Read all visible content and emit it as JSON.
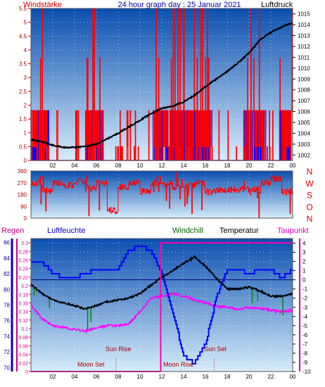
{
  "title": "24 hour graph day : 25 Januar 2021",
  "colors": {
    "wind_gust": "#ff0000",
    "wind_avg": "#0000ff",
    "pressure": "#000000",
    "direction": "#ff0000",
    "humidity": "#0000ff",
    "windchill": "#008800",
    "temperature": "#000000",
    "dewpoint": "#ff00ff",
    "rain": "#ff00aa",
    "sky_top": "#0a4fb0",
    "sky_bottom": "#d6ecfa"
  },
  "x_hours": [
    "02",
    "04",
    "06",
    "08",
    "10",
    "12",
    "14",
    "16",
    "18",
    "20",
    "22",
    "00"
  ],
  "panel1": {
    "left_label": "Windstärke",
    "right_label": "Luftdruck",
    "left_ticks": [
      "5.5",
      "5",
      "4.5",
      "4",
      "3.5",
      "3",
      "2.5",
      "2",
      "1.5",
      "1",
      "0.5",
      "0"
    ],
    "right_ticks": [
      "1015",
      "1014",
      "1013",
      "1012",
      "1011",
      "1010",
      "1009",
      "1008",
      "1007",
      "1006",
      "1005",
      "1004",
      "1003",
      "1002"
    ]
  },
  "panel2": {
    "left_ticks": [
      "360",
      "270",
      "180",
      "90",
      "0"
    ],
    "right_ticks": [
      "N",
      "W",
      "S",
      "O",
      "N"
    ]
  },
  "panel3": {
    "rain_label": "Regen",
    "humidity_label": "Luftfeuchte",
    "windchill_label": "Windchill",
    "temperature_label": "Temperatur",
    "dewpoint_label": "Taupunkt",
    "humidity_ticks": [
      "86",
      "84",
      "82",
      "80",
      "78",
      "76",
      "74",
      "72",
      "70"
    ],
    "rain_ticks": [
      "0.3",
      "0.28",
      "0.26",
      "0.24",
      "0.22",
      "0.2",
      "0.18",
      "0.16",
      "0.14",
      "0.12",
      "0.1",
      "0.08",
      "0.06",
      "0.04",
      "0.02",
      "0"
    ],
    "temp_ticks": [
      "4",
      "3",
      "2",
      "1",
      "0",
      "-1",
      "-2",
      "-3",
      "-4",
      "-5",
      "-6",
      "-7",
      "-8",
      "-9",
      "-10"
    ],
    "moon_set": "Moon Set",
    "sun_rise": "Sun Rise",
    "moon_rise": "Moon Rise",
    "sun_set": "Sun Set"
  },
  "chart_data": [
    {
      "type": "line",
      "title": "24 hour graph day : 25 Januar 2021",
      "ylabel": "Windstärke",
      "y2label": "Luftdruck",
      "ylim": [
        0,
        5.5
      ],
      "y2lim": [
        1001.5,
        1015.5
      ],
      "x": [
        0,
        1,
        2,
        3,
        4,
        5,
        6,
        7,
        8,
        9,
        10,
        11,
        12,
        13,
        14,
        15,
        16,
        17,
        18,
        19,
        20,
        21,
        22,
        23,
        24
      ],
      "series": [
        {
          "name": "Luftdruck",
          "values": [
            1003.4,
            1003.2,
            1002.9,
            1002.7,
            1002.7,
            1002.8,
            1003.0,
            1003.5,
            1004.0,
            1004.6,
            1005.2,
            1005.8,
            1006.3,
            1006.5,
            1006.9,
            1007.5,
            1008.3,
            1009.0,
            1009.7,
            1010.5,
            1011.4,
            1012.6,
            1013.3,
            1013.8,
            1014.2
          ]
        }
      ]
    },
    {
      "type": "line",
      "ylim": [
        0,
        360
      ],
      "x": [
        0,
        1,
        2,
        3,
        4,
        5,
        6,
        7,
        8,
        9,
        10,
        11,
        12,
        13,
        14,
        15,
        16,
        17,
        18,
        19,
        20,
        21,
        22,
        23,
        24
      ],
      "series": [
        {
          "name": "",
          "values": [
            270,
            210,
            270,
            250,
            280,
            230,
            270,
            60,
            240,
            270,
            200,
            270,
            260,
            240,
            250,
            270,
            200,
            220,
            220,
            220,
            220,
            270,
            300,
            200,
            270
          ]
        }
      ]
    },
    {
      "type": "line",
      "ylabel": "Luftfeuchte",
      "y2label": "Temperatur",
      "ylim": [
        70,
        86
      ],
      "y2lim": [
        -10,
        4
      ],
      "x": [
        0,
        1,
        2,
        3,
        4,
        5,
        6,
        7,
        8,
        9,
        10,
        11,
        12,
        13,
        14,
        15,
        16,
        17,
        18,
        19,
        20,
        21,
        22,
        23,
        24
      ],
      "series": [
        {
          "name": "Temperatur",
          "values": [
            -0.5,
            -1.5,
            -2.2,
            -2.5,
            -2.8,
            -3.2,
            -2.8,
            -2.4,
            -2.2,
            -2.0,
            -1.5,
            -0.6,
            0.3,
            1.0,
            1.8,
            2.5,
            1.5,
            0.2,
            -1.0,
            -1.0,
            -0.8,
            -1.2,
            -1.8,
            -1.8,
            -1.5
          ]
        },
        {
          "name": "Taupunkt",
          "values": [
            -2.8,
            -4.2,
            -5.0,
            -5.2,
            -5.4,
            -5.6,
            -5.2,
            -5.0,
            -5.0,
            -4.8,
            -3.5,
            -2.0,
            -1.8,
            -1.5,
            -1.8,
            -2.2,
            -2.5,
            -2.9,
            -3.0,
            -3.2,
            -3.0,
            -3.1,
            -3.3,
            -3.5,
            -3.3
          ]
        },
        {
          "name": "Luftfeuchte",
          "values": [
            83.5,
            83.5,
            82.0,
            81.5,
            81.5,
            82.0,
            82.5,
            82.5,
            82.5,
            85.0,
            85.5,
            85.0,
            82.0,
            77.0,
            71.5,
            70.5,
            73.0,
            79.0,
            82.5,
            82.5,
            82.0,
            82.5,
            82.5,
            81.5,
            82.5
          ]
        }
      ]
    }
  ]
}
